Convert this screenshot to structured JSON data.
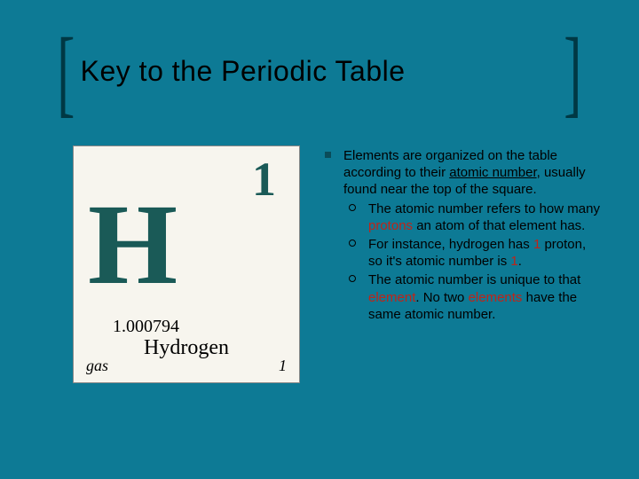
{
  "colors": {
    "background": "#0d7a95",
    "bracket": "#003844",
    "element_accent": "#1a5a57",
    "element_bg": "#f7f5ee",
    "highlight": "#c02418",
    "square_bullet": "#0a4c5a"
  },
  "title": "Key to the Periodic Table",
  "element": {
    "atomic_number": "1",
    "symbol": "H",
    "mass": "1.000794",
    "name": "Hydrogen",
    "phase": "gas",
    "period": "1"
  },
  "text": {
    "main_pre": "Elements are organized on the table according to their ",
    "main_underline": "atomic number",
    "main_post": ", usually found near the top of the square.",
    "sub1_pre": "The atomic number refers to how many ",
    "sub1_hl": "protons",
    "sub1_post": " an atom of that element has.",
    "sub2_pre": "For instance, hydrogen has ",
    "sub2_hl1": "1",
    "sub2_mid": " proton, so it's atomic number is ",
    "sub2_hl2": "1",
    "sub2_post": ".",
    "sub3_pre": "The atomic number is unique to that ",
    "sub3_hl1": "element",
    "sub3_mid": ". No two ",
    "sub3_hl2": "elements",
    "sub3_post": " have the same atomic number."
  }
}
